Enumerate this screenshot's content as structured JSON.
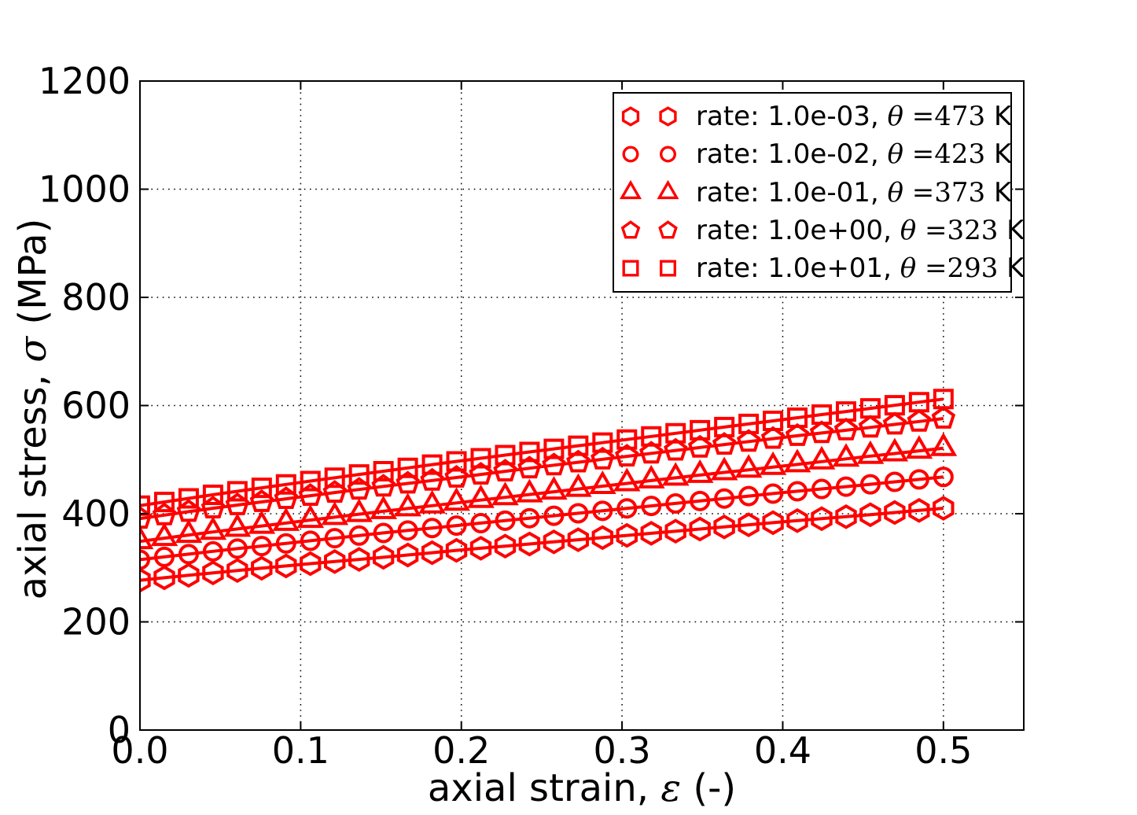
{
  "figure": {
    "background": "#ffffff",
    "axis_color": "#000000",
    "series_color": "#ff0000"
  },
  "axes": {
    "xlabel": {
      "prefix": "axial strain, ",
      "symbol": "ε",
      "suffix": " (-)"
    },
    "ylabel": {
      "prefix": "axial stress, ",
      "symbol": "σ",
      "suffix": " (MPa)"
    },
    "xlim": [
      0,
      0.55
    ],
    "ylim": [
      0,
      1200
    ],
    "xticks": {
      "values": [
        0.0,
        0.1,
        0.2,
        0.3,
        0.4,
        0.5
      ],
      "labels": [
        "0.0",
        "0.1",
        "0.2",
        "0.3",
        "0.4",
        "0.5"
      ]
    },
    "yticks": {
      "values": [
        0,
        200,
        400,
        600,
        800,
        1000,
        1200
      ],
      "labels": [
        "0",
        "200",
        "400",
        "600",
        "800",
        "1000",
        "1200"
      ]
    },
    "grid": true,
    "grid_style": "dotted"
  },
  "legend": {
    "position": "upper right",
    "markers_per_entry": 2
  },
  "chart_data": {
    "type": "line",
    "title": "",
    "xlabel": "axial strain, ε (-)",
    "ylabel": "axial stress, σ (MPa)",
    "color": "#ff0000",
    "marker_count": 34,
    "x_sample": [
      0,
      0.05,
      0.1,
      0.15,
      0.2,
      0.25,
      0.3,
      0.35,
      0.4,
      0.45,
      0.5
    ],
    "series": [
      {
        "name": "rate: 1.0e-03, theta=473 K",
        "marker": "hexagon",
        "legend_label": {
          "prefix": "rate: 1.0e-03, ",
          "theta": "θ ",
          "eq_value": "=473",
          "unit": " K"
        },
        "values": [
          277,
          292,
          306,
          319,
          333,
          346,
          359,
          372,
          385,
          397,
          410
        ]
      },
      {
        "name": "rate: 1.0e-02, theta=423 K",
        "marker": "circle",
        "legend_label": {
          "prefix": "rate: 1.0e-02, ",
          "theta": "θ ",
          "eq_value": "=423",
          "unit": " K"
        },
        "values": [
          315,
          332,
          348,
          364,
          379,
          394,
          409,
          424,
          439,
          453,
          468
        ]
      },
      {
        "name": "rate: 1.0e-01, theta=373 K",
        "marker": "triangle",
        "legend_label": {
          "prefix": "rate: 1.0e-01, ",
          "theta": "θ ",
          "eq_value": "=373",
          "unit": " K"
        },
        "values": [
          349,
          368,
          386,
          404,
          421,
          438,
          455,
          472,
          488,
          505,
          521
        ]
      },
      {
        "name": "rate: 1.0e+00, theta=323 K",
        "marker": "pentagon",
        "legend_label": {
          "prefix": "rate: 1.0e+00, ",
          "theta": "θ ",
          "eq_value": "=323",
          "unit": " K"
        },
        "values": [
          391,
          412,
          431,
          450,
          468,
          487,
          505,
          523,
          541,
          558,
          576
        ]
      },
      {
        "name": "rate: 1.0e+01, theta=293 K",
        "marker": "square",
        "legend_label": {
          "prefix": "rate: 1.0e+01, ",
          "theta": "θ ",
          "eq_value": "=293",
          "unit": " K"
        },
        "values": [
          415,
          437,
          458,
          478,
          498,
          517,
          536,
          555,
          574,
          593,
          612
        ]
      }
    ]
  }
}
